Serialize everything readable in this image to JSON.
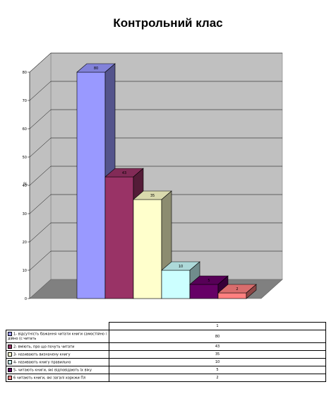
{
  "chart_data": {
    "type": "bar",
    "title": "Контрольний клас",
    "ylabel": "%",
    "ylim": [
      0,
      80
    ],
    "yticks": [
      0,
      10,
      20,
      30,
      40,
      50,
      60,
      70,
      80
    ],
    "grid": true,
    "series_label": "1",
    "categories": [
      "1- відсутність бажання читати книги самостійно і дійно (с читать",
      "2- вміють, про що почуть читати",
      "3- називають визначену книгу",
      "4- називають книгу правильно",
      "5- читають книги, які відповідають їх віку",
      "6 читають книги, які загалі хоркжи Пл"
    ],
    "values": [
      80,
      43,
      35,
      10,
      5,
      2
    ],
    "colors": [
      "#9999ff",
      "#993366",
      "#ffffcc",
      "#ccffff",
      "#660066",
      "#ff8080"
    ]
  }
}
